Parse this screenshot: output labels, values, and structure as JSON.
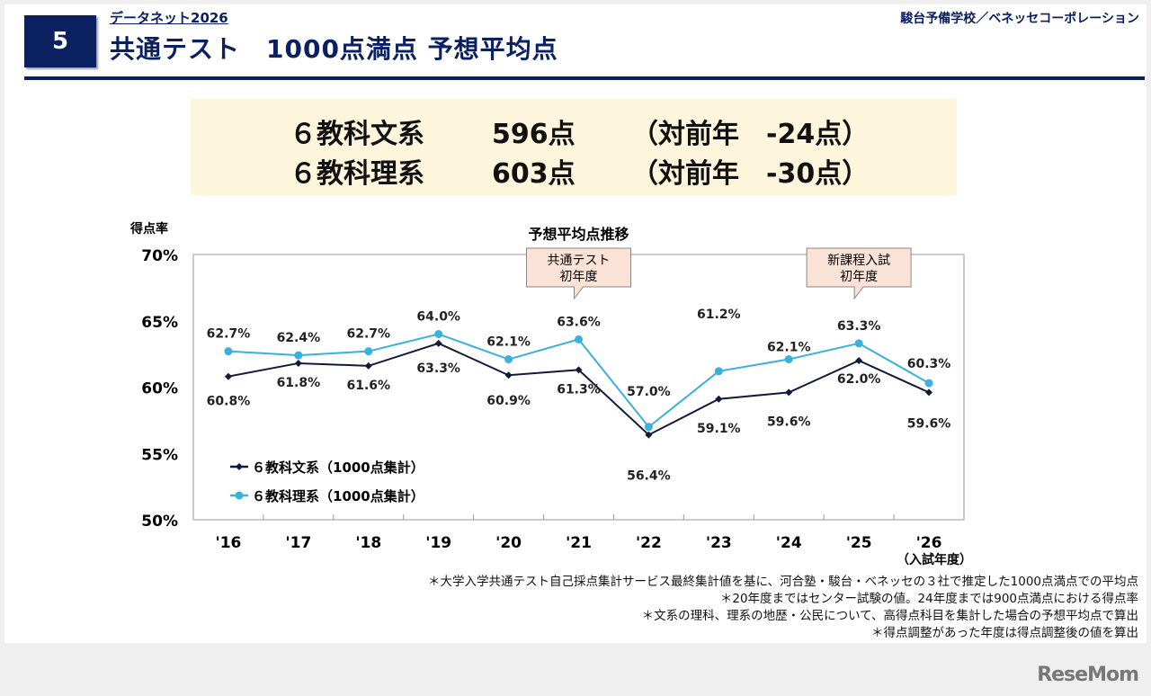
{
  "header": {
    "slide_number": "5",
    "series_label": "データネット2026",
    "title": "共通テスト　1000点満点 予想平均点",
    "organization": "駿台予備学校／ベネッセコーポレーション"
  },
  "summary": [
    {
      "label": "６教科文系",
      "score": "596点",
      "diff": "（対前年　-24点）"
    },
    {
      "label": "６教科理系",
      "score": "603点",
      "diff": "（対前年　-30点）"
    }
  ],
  "chart_data": {
    "type": "line",
    "title": "予想平均点推移",
    "ylabel": "得点率",
    "xlabel": "（入試年度）",
    "ylim": [
      50,
      70
    ],
    "yticks": [
      "50%",
      "55%",
      "60%",
      "65%",
      "70%"
    ],
    "yticks_values": [
      50,
      55,
      60,
      65,
      70
    ],
    "categories": [
      "'16",
      "'17",
      "'18",
      "'19",
      "'20",
      "'21",
      "'22",
      "'23",
      "'24",
      "'25",
      "'26"
    ],
    "series": [
      {
        "name": "６教科文系（1000点集計）",
        "color": "#111a3a",
        "marker": "diamond",
        "values": [
          60.8,
          61.8,
          61.6,
          63.3,
          60.9,
          61.3,
          56.4,
          59.1,
          59.6,
          62.0,
          59.6
        ],
        "labels": [
          "60.8%",
          "61.8%",
          "61.6%",
          "63.3%",
          "60.9%",
          "61.3%",
          "56.4%",
          "59.1%",
          "59.6%",
          "62.0%",
          "59.6%"
        ]
      },
      {
        "name": "６教科理系（1000点集計）",
        "color": "#3ab0dc",
        "marker": "circle",
        "values": [
          62.7,
          62.4,
          62.7,
          64.0,
          62.1,
          63.6,
          57.0,
          61.2,
          62.1,
          63.3,
          60.3
        ],
        "labels": [
          "62.7%",
          "62.4%",
          "62.7%",
          "64.0%",
          "62.1%",
          "63.6%",
          "57.0%",
          "61.2%",
          "62.1%",
          "63.3%",
          "60.3%"
        ]
      }
    ],
    "annotations": [
      {
        "category": "'21",
        "lines": [
          "共通テスト",
          "初年度"
        ]
      },
      {
        "category": "'25",
        "lines": [
          "新課程入試",
          "初年度"
        ]
      }
    ],
    "grid": false,
    "legend": "bottom-left"
  },
  "footnotes": [
    "＊大学入学共通テスト自己採点集計サービス最終集計値を基に、河合塾・駿台・ベネッセの３社で推定した1000点満点での平均点",
    "＊20年度まではセンター試験の値。24年度までは900点満点における得点率",
    "＊文系の理科、理系の地歴・公民について、高得点科目を集計した場合の予想平均点で算出",
    "＊得点調整があった年度は得点調整後の値を算出"
  ],
  "watermark": "ReseMom"
}
